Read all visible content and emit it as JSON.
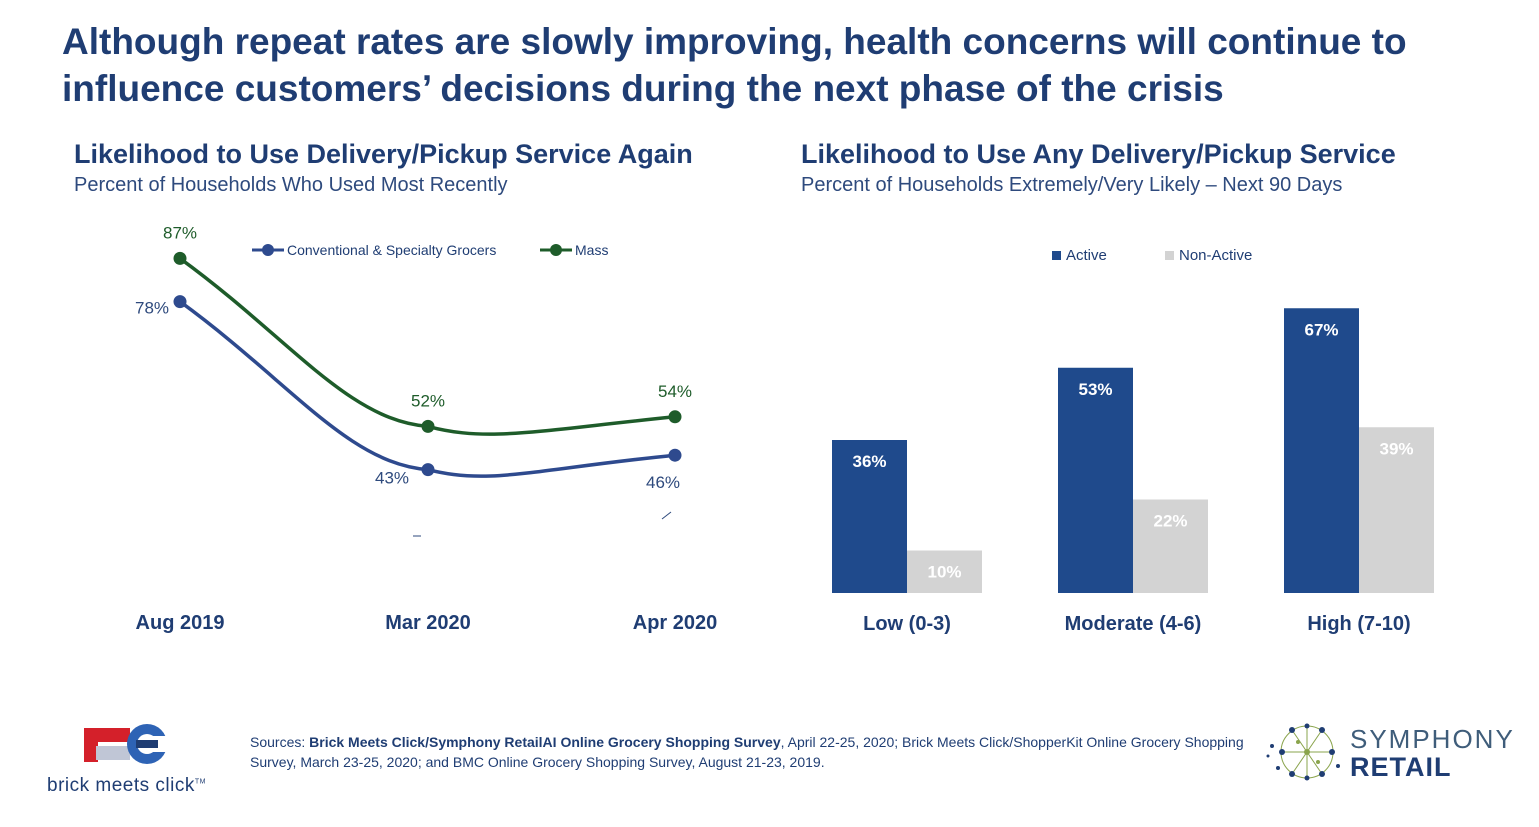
{
  "headline": "Although repeat rates are slowly improving, health concerns will continue to influence customers’ decisions during the next phase of the crisis",
  "chart_data": [
    {
      "type": "line",
      "title": "Likelihood to Use Delivery/Pickup Service Again",
      "subtitle": "Percent of Households Who Used Most Recently",
      "categories": [
        "Aug 2019",
        "Mar 2020",
        "Apr 2020"
      ],
      "series": [
        {
          "name": "Conventional & Specialty Grocers",
          "values": [
            78,
            43,
            46
          ],
          "labels": [
            "78%",
            "43%",
            "46%"
          ],
          "color": "#2e4a8e"
        },
        {
          "name": "Mass",
          "values": [
            87,
            52,
            54
          ],
          "labels": [
            "87%",
            "52%",
            "54%"
          ],
          "color": "#1e5c2a"
        }
      ],
      "ylim": [
        20,
        95
      ],
      "legend": "top-center",
      "grid": false
    },
    {
      "type": "bar",
      "title": "Likelihood to Use Any Delivery/Pickup Service",
      "subtitle": "Percent of Households Extremely/Very Likely – Next 90 Days",
      "categories": [
        "Low (0-3)",
        "Moderate (4-6)",
        "High (7-10)"
      ],
      "series": [
        {
          "name": "Active",
          "values": [
            36,
            53,
            67
          ],
          "labels": [
            "36%",
            "53%",
            "67%"
          ],
          "color": "#1f4a8c"
        },
        {
          "name": "Non-Active",
          "values": [
            10,
            22,
            39
          ],
          "labels": [
            "10%",
            "22%",
            "39%"
          ],
          "color": "#d3d3d3"
        }
      ],
      "ylim": [
        0,
        70
      ],
      "legend": "top-center",
      "grid": false
    }
  ],
  "sources": {
    "prefix": "Sources: ",
    "bold": "Brick Meets Click/Symphony RetailAI Online Grocery Shopping Survey",
    "rest": ", April 22-25, 2020;  Brick Meets Click/ShopperKit Online Grocery Shopping Survey, March 23-25, 2020; and BMC Online Grocery Shopping Survey, August 21-23, 2019."
  },
  "logos": {
    "left": "brick meets click",
    "left_tm": "TM",
    "right_top": "SYMPHONY",
    "right_bottom": "RETAIL"
  }
}
